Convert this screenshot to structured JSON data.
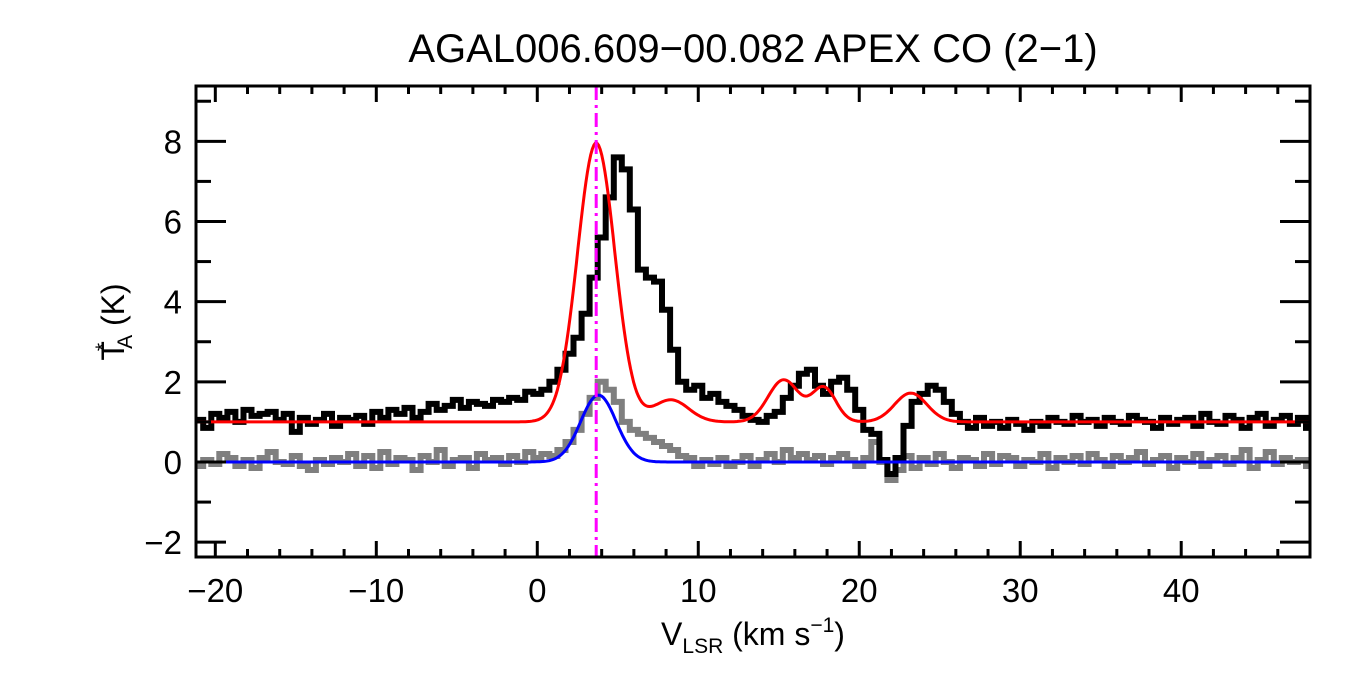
{
  "chart_data": {
    "type": "line",
    "title": "AGAL006.609−00.082  APEX CO (2−1)",
    "xlabel": {
      "main": "V",
      "sub": "LSR",
      "rest": " (km s",
      "sup": "−1",
      "close": ")"
    },
    "ylabel": {
      "main": "T",
      "sup": "*",
      "sub": "A",
      "rest": " (K)"
    },
    "xlim": [
      -21.2,
      48.0
    ],
    "ylim": [
      -2.37,
      9.38
    ],
    "xticks": [
      -20,
      -10,
      0,
      10,
      20,
      30,
      40
    ],
    "xtick_labels": [
      "−20",
      "−10",
      "0",
      "10",
      "20",
      "30",
      "40"
    ],
    "x_minor_step": 2,
    "yticks": [
      -2,
      0,
      2,
      4,
      6,
      8
    ],
    "ytick_labels": [
      "−2",
      "0",
      "2",
      "4",
      "6",
      "8"
    ],
    "y_minor_step": 1,
    "grid": false,
    "colors": {
      "observed": "#000000",
      "residual": "#7f7f7f",
      "total_fit": "#ff0000",
      "component_fit": "#0000ff",
      "velocity_marker": "#ff00ff"
    },
    "velocity_marker": 3.66,
    "channel": {
      "start": -21.0,
      "step": 0.5
    },
    "series": [
      {
        "name": "observed spectrum",
        "style": "histogram",
        "values": [
          1.05,
          0.85,
          1.2,
          1.1,
          1.25,
          1.0,
          1.3,
          1.15,
          1.2,
          1.25,
          1.05,
          1.2,
          0.75,
          1.1,
          0.95,
          1.05,
          1.2,
          0.9,
          1.1,
          1.05,
          1.15,
          0.95,
          1.25,
          1.1,
          1.3,
          1.2,
          1.35,
          1.1,
          1.25,
          1.45,
          1.3,
          1.4,
          1.55,
          1.35,
          1.5,
          1.45,
          1.4,
          1.55,
          1.5,
          1.6,
          1.55,
          1.75,
          1.7,
          1.8,
          2.0,
          2.3,
          2.7,
          3.1,
          3.7,
          4.6,
          5.6,
          6.6,
          7.6,
          7.3,
          6.3,
          4.8,
          4.6,
          4.5,
          3.8,
          2.8,
          2.0,
          1.8,
          1.9,
          1.6,
          1.7,
          1.5,
          1.4,
          1.3,
          1.15,
          1.05,
          1.0,
          1.15,
          1.25,
          1.6,
          1.9,
          2.2,
          2.3,
          1.9,
          1.7,
          2.0,
          2.1,
          1.8,
          1.3,
          0.8,
          0.7,
          0.05,
          -0.3,
          0.1,
          0.9,
          1.5,
          1.7,
          1.9,
          1.8,
          1.5,
          1.2,
          1.0,
          0.85,
          1.1,
          0.9,
          1.0,
          0.85,
          1.05,
          0.95,
          0.8,
          1.0,
          0.9,
          1.1,
          1.0,
          0.95,
          1.15,
          1.0,
          1.05,
          0.9,
          1.1,
          1.0,
          0.95,
          1.15,
          1.05,
          1.0,
          0.85,
          1.1,
          0.95,
          1.05,
          1.1,
          0.9,
          1.2,
          1.0,
          0.95,
          1.15,
          1.05,
          0.85,
          1.1,
          1.2,
          0.9,
          1.05,
          1.15,
          0.95,
          1.1,
          0.85,
          1.05
        ]
      },
      {
        "name": "residual spectrum",
        "style": "histogram",
        "values": [
          -0.1,
          0.05,
          -0.05,
          0.2,
          0.1,
          -0.1,
          0.05,
          -0.15,
          0.1,
          0.25,
          0.0,
          -0.05,
          0.15,
          -0.1,
          -0.2,
          0.05,
          -0.05,
          0.1,
          0.0,
          0.2,
          -0.1,
          0.15,
          -0.15,
          0.25,
          -0.05,
          0.1,
          0.05,
          -0.2,
          0.15,
          0.0,
          0.3,
          -0.1,
          0.05,
          0.1,
          -0.15,
          0.2,
          0.05,
          0.1,
          -0.05,
          0.15,
          0.0,
          0.25,
          0.1,
          0.2,
          0.15,
          0.3,
          0.5,
          0.8,
          1.2,
          1.6,
          2.0,
          1.8,
          1.5,
          1.0,
          0.8,
          0.7,
          0.6,
          0.5,
          0.4,
          0.3,
          0.15,
          0.1,
          -0.1,
          0.05,
          -0.05,
          0.1,
          -0.1,
          0.0,
          0.15,
          -0.1,
          0.05,
          0.2,
          0.0,
          0.3,
          0.1,
          0.2,
          0.05,
          0.15,
          -0.05,
          0.1,
          0.2,
          0.05,
          -0.1,
          0.1,
          0.5,
          0.0,
          -0.45,
          -0.2,
          0.15,
          -0.15,
          0.1,
          -0.05,
          0.2,
          0.0,
          -0.15,
          0.1,
          0.05,
          -0.1,
          0.2,
          -0.05,
          0.15,
          0.1,
          -0.1,
          0.05,
          0.0,
          0.2,
          -0.15,
          0.1,
          0.0,
          0.15,
          -0.05,
          0.2,
          0.05,
          -0.1,
          0.15,
          0.0,
          0.1,
          0.25,
          -0.05,
          0.05,
          0.15,
          -0.15,
          0.1,
          0.0,
          0.2,
          -0.1,
          0.05,
          0.15,
          -0.05,
          0.1,
          0.3,
          -0.15,
          0.05,
          0.25,
          -0.05,
          0.1,
          0.0,
          0.05,
          -0.1
        ]
      },
      {
        "name": "total gaussian fit",
        "style": "model",
        "baseline": 1.0,
        "components": [
          {
            "amp": 6.96,
            "center": 3.66,
            "sigma": 1.16
          },
          {
            "amp": 0.55,
            "center": 8.3,
            "sigma": 1.1
          },
          {
            "amp": 1.05,
            "center": 15.3,
            "sigma": 0.95
          },
          {
            "amp": 0.85,
            "center": 17.8,
            "sigma": 0.75
          },
          {
            "amp": 0.72,
            "center": 23.2,
            "sigma": 1.0
          }
        ]
      },
      {
        "name": "component gaussian fit",
        "style": "model",
        "baseline": 0.0,
        "components": [
          {
            "amp": 1.67,
            "center": 3.8,
            "sigma": 1.1
          }
        ]
      }
    ]
  }
}
